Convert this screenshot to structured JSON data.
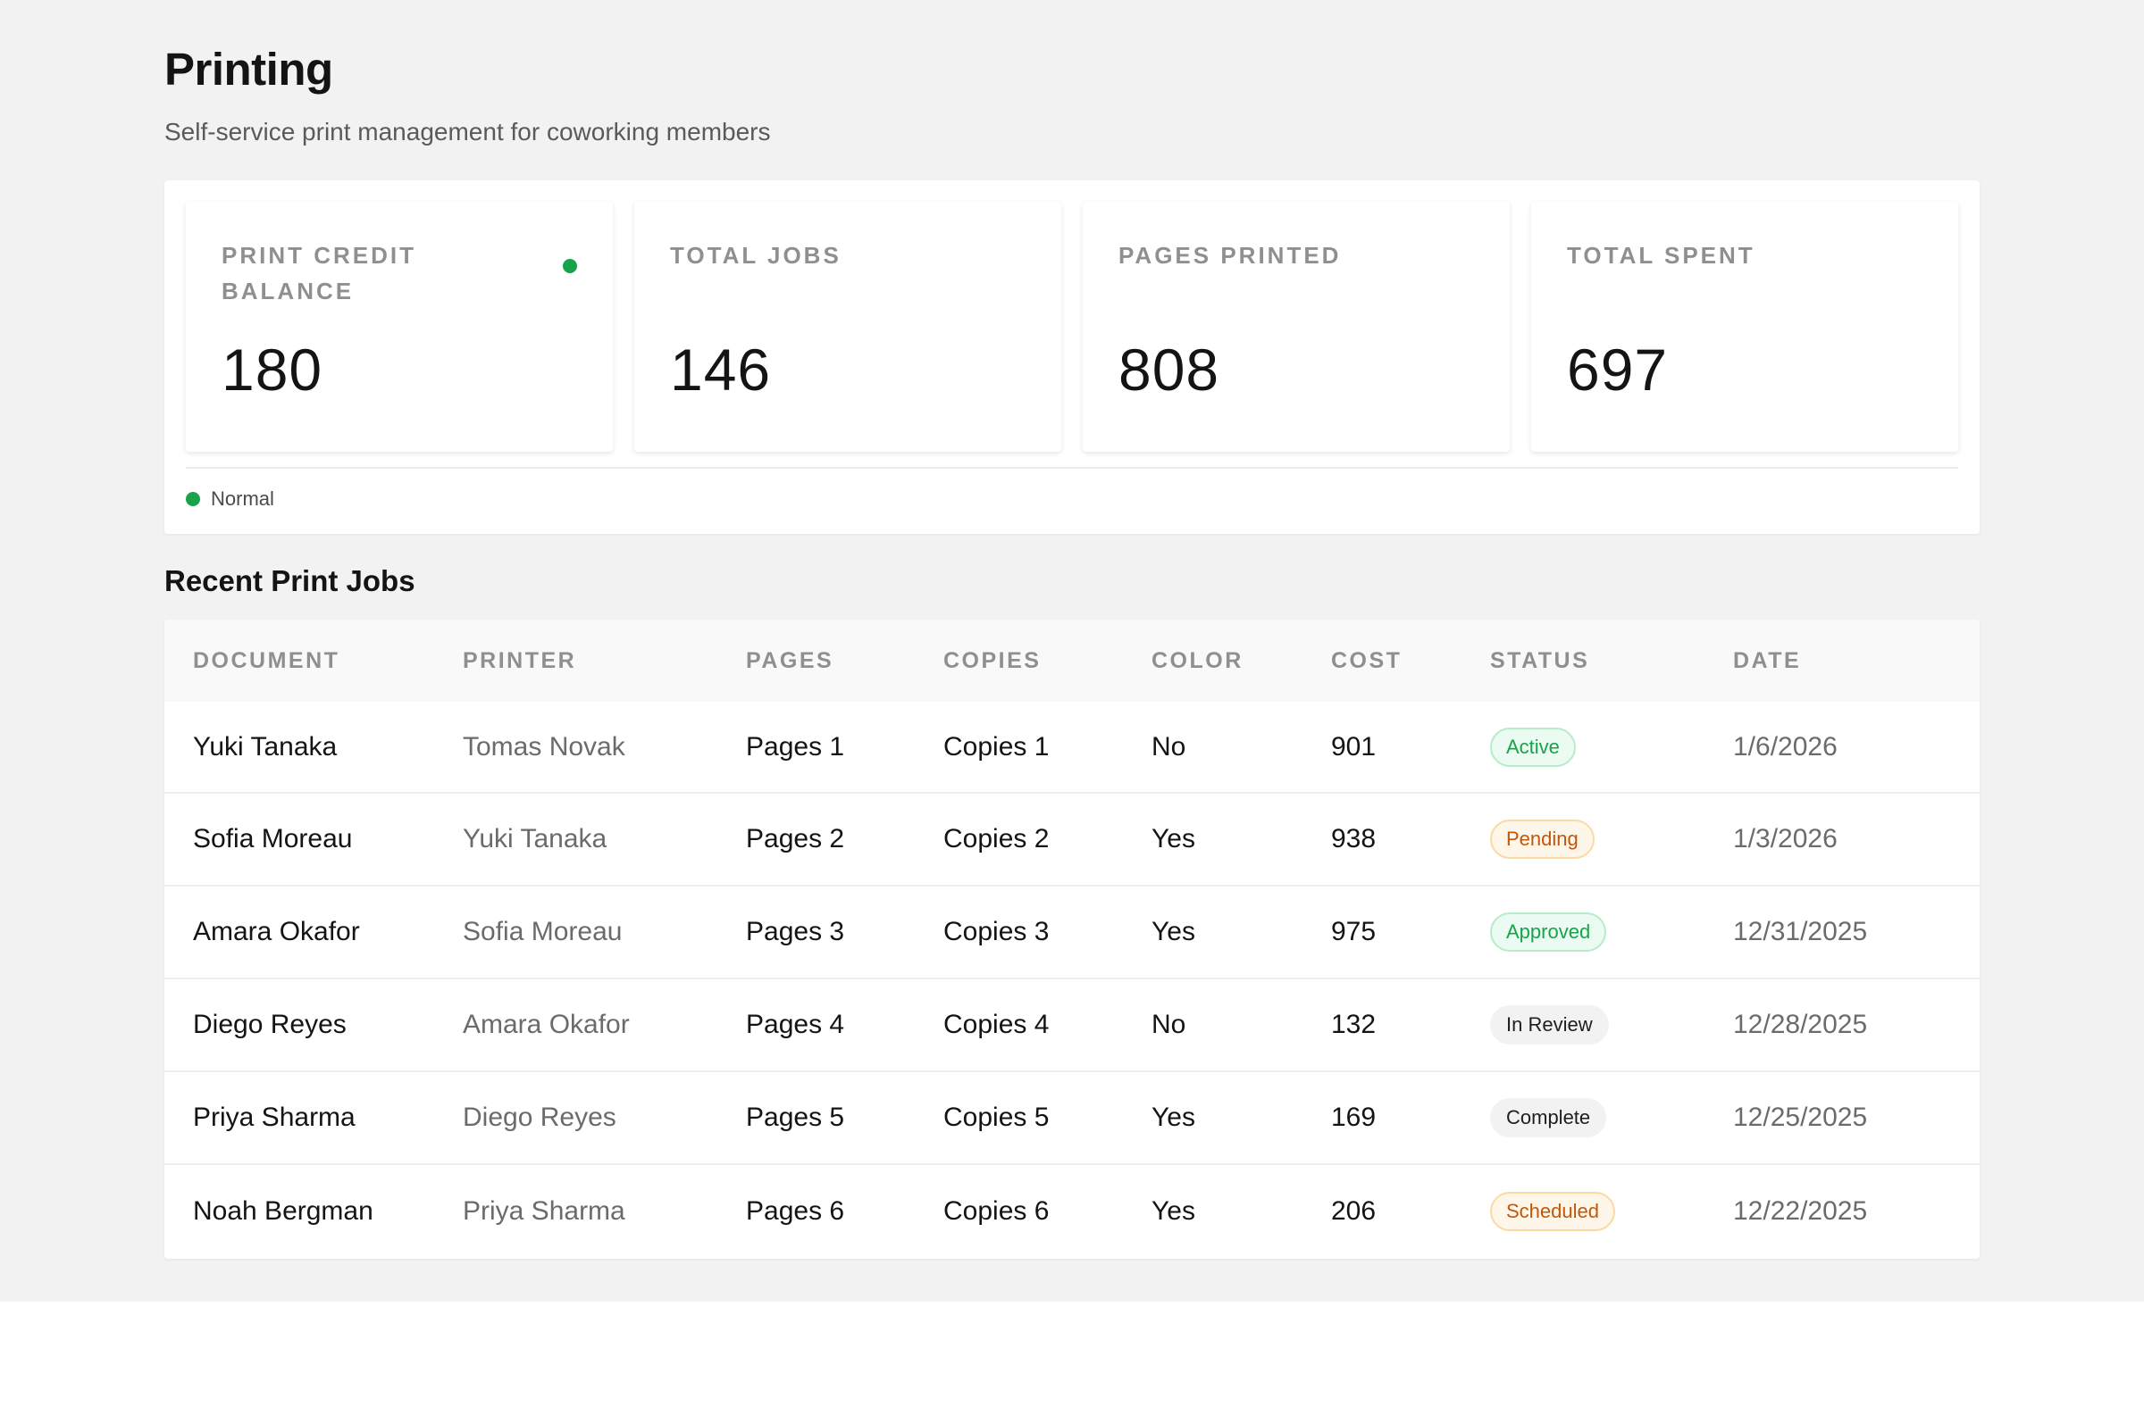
{
  "header": {
    "title": "Printing",
    "subtitle": "Self-service print management for coworking members"
  },
  "stats": [
    {
      "label": "PRINT CREDIT BALANCE",
      "value": "180",
      "indicator": "green-dot"
    },
    {
      "label": "TOTAL JOBS",
      "value": "146"
    },
    {
      "label": "PAGES PRINTED",
      "value": "808"
    },
    {
      "label": "TOTAL SPENT",
      "value": "697"
    }
  ],
  "legend": {
    "label": "Normal",
    "color": "#16a34a"
  },
  "recent": {
    "title": "Recent Print Jobs",
    "columns": [
      "DOCUMENT",
      "PRINTER",
      "PAGES",
      "COPIES",
      "COLOR",
      "COST",
      "STATUS",
      "DATE"
    ],
    "rows": [
      {
        "document": "Yuki Tanaka",
        "printer": "Tomas Novak",
        "pages": "Pages 1",
        "copies": "Copies 1",
        "color": "No",
        "cost": "901",
        "status": "Active",
        "status_tone": "green",
        "date": "1/6/2026"
      },
      {
        "document": "Sofia Moreau",
        "printer": "Yuki Tanaka",
        "pages": "Pages 2",
        "copies": "Copies 2",
        "color": "Yes",
        "cost": "938",
        "status": "Pending",
        "status_tone": "amber",
        "date": "1/3/2026"
      },
      {
        "document": "Amara Okafor",
        "printer": "Sofia Moreau",
        "pages": "Pages 3",
        "copies": "Copies 3",
        "color": "Yes",
        "cost": "975",
        "status": "Approved",
        "status_tone": "green",
        "date": "12/31/2025"
      },
      {
        "document": "Diego Reyes",
        "printer": "Amara Okafor",
        "pages": "Pages 4",
        "copies": "Copies 4",
        "color": "No",
        "cost": "132",
        "status": "In Review",
        "status_tone": "gray",
        "date": "12/28/2025"
      },
      {
        "document": "Priya Sharma",
        "printer": "Diego Reyes",
        "pages": "Pages 5",
        "copies": "Copies 5",
        "color": "Yes",
        "cost": "169",
        "status": "Complete",
        "status_tone": "gray",
        "date": "12/25/2025"
      },
      {
        "document": "Noah Bergman",
        "printer": "Priya Sharma",
        "pages": "Pages 6",
        "copies": "Copies 6",
        "color": "Yes",
        "cost": "206",
        "status": "Scheduled",
        "status_tone": "amber",
        "date": "12/22/2025"
      }
    ]
  }
}
